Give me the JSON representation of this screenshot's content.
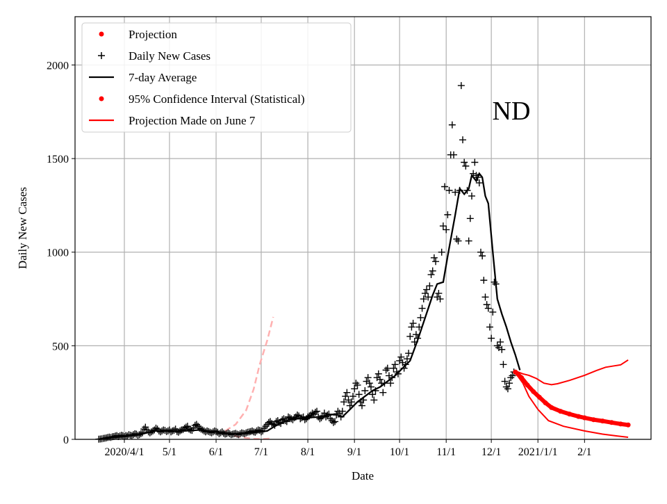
{
  "chart_data": {
    "type": "scatter",
    "title": "",
    "annotation": "ND",
    "xlabel": "Date",
    "ylabel": "Daily New Cases",
    "x_units": "days since 2020-04-01",
    "xlim": [
      -32.8,
      350.2
    ],
    "ylim": [
      0,
      2258
    ],
    "grid": true,
    "legend_position": "top-left",
    "x_ticks": [
      {
        "day": 0,
        "label": "2020/4/1"
      },
      {
        "day": 30,
        "label": "5/1"
      },
      {
        "day": 61,
        "label": "6/1"
      },
      {
        "day": 91,
        "label": "7/1"
      },
      {
        "day": 122,
        "label": "8/1"
      },
      {
        "day": 153,
        "label": "9/1"
      },
      {
        "day": 183,
        "label": "10/1"
      },
      {
        "day": 214,
        "label": "11/1"
      },
      {
        "day": 244,
        "label": "12/1"
      },
      {
        "day": 275,
        "label": "2021/1/1"
      },
      {
        "day": 306,
        "label": "2/1"
      }
    ],
    "y_ticks": [
      0,
      500,
      1000,
      1500,
      2000
    ],
    "legend": [
      {
        "label": "Projection",
        "marker": "dot",
        "color": "#ff0000"
      },
      {
        "label": "Daily New Cases",
        "marker": "plus",
        "color": "#000000"
      },
      {
        "label": "7-day Average",
        "marker": "line",
        "color": "#000000"
      },
      {
        "label": "95% Confidence Interval (Statistical)",
        "marker": "dot",
        "color": "#ff0000"
      },
      {
        "label": "Projection Made on June 7",
        "marker": "line",
        "color": "#ff0000"
      }
    ],
    "series": [
      {
        "name": "Daily New Cases",
        "color": "#000000",
        "start_day": -17,
        "values": [
          1,
          2,
          3,
          5,
          6,
          8,
          10,
          12,
          10,
          14,
          15,
          18,
          20,
          15,
          18,
          22,
          20,
          15,
          20,
          18,
          25,
          22,
          20,
          25,
          30,
          28,
          22,
          25,
          30,
          35,
          55,
          65,
          50,
          40,
          35,
          40,
          45,
          50,
          60,
          55,
          45,
          40,
          45,
          50,
          48,
          42,
          45,
          50,
          40,
          45,
          48,
          55,
          42,
          38,
          45,
          50,
          52,
          60,
          65,
          70,
          55,
          50,
          48,
          60,
          75,
          80,
          70,
          60,
          55,
          50,
          45,
          40,
          45,
          42,
          38,
          35,
          40,
          45,
          42,
          38,
          30,
          35,
          40,
          32,
          28,
          30,
          35,
          30,
          25,
          28,
          30,
          32,
          28,
          25,
          30,
          35,
          32,
          30,
          35,
          38,
          40,
          42,
          45,
          40,
          38,
          45,
          50,
          48,
          40,
          45,
          60,
          70,
          80,
          90,
          95,
          85,
          80,
          75,
          95,
          100,
          90,
          85,
          105,
          110,
          100,
          95,
          120,
          115,
          110,
          105,
          115,
          120,
          130,
          125,
          110,
          115,
          120,
          105,
          110,
          120,
          125,
          130,
          140,
          135,
          145,
          150,
          120,
          110,
          115,
          125,
          140,
          120,
          130,
          135,
          110,
          100,
          90,
          95,
          130,
          150,
          140,
          120,
          150,
          200,
          230,
          250,
          210,
          180,
          200,
          230,
          270,
          300,
          290,
          240,
          200,
          180,
          210,
          260,
          310,
          330,
          300,
          280,
          240,
          210,
          260,
          330,
          350,
          320,
          300,
          250,
          300,
          370,
          380,
          340,
          300,
          330,
          380,
          400,
          360,
          350,
          420,
          440,
          410,
          380,
          400,
          430,
          460,
          550,
          600,
          620,
          520,
          560,
          540,
          600,
          650,
          700,
          750,
          780,
          800,
          760,
          820,
          880,
          900,
          970,
          950,
          760,
          780,
          750,
          1000,
          1140,
          1350,
          1120,
          1200,
          1330,
          1520,
          1680,
          1520,
          1320,
          1070,
          1060,
          1330,
          1890,
          1600,
          1480,
          1460,
          1330,
          1060,
          1180,
          1300,
          1420,
          1480,
          1410,
          1400,
          1370,
          1000,
          980,
          850,
          760,
          720,
          700,
          600,
          540,
          680,
          840,
          830,
          500,
          490,
          520,
          480,
          400,
          310,
          280,
          270,
          300,
          330,
          340,
          360
        ]
      },
      {
        "name": "7-day Average",
        "color": "#000000",
        "points": [
          [
            -17,
            0
          ],
          [
            -8,
            10
          ],
          [
            0,
            15
          ],
          [
            10,
            25
          ],
          [
            20,
            45
          ],
          [
            30,
            45
          ],
          [
            40,
            45
          ],
          [
            50,
            50
          ],
          [
            60,
            40
          ],
          [
            70,
            30
          ],
          [
            80,
            30
          ],
          [
            90,
            40
          ],
          [
            95,
            45
          ],
          [
            100,
            70
          ],
          [
            105,
            90
          ],
          [
            110,
            105
          ],
          [
            120,
            115
          ],
          [
            130,
            120
          ],
          [
            140,
            135
          ],
          [
            145,
            120
          ],
          [
            150,
            160
          ],
          [
            155,
            200
          ],
          [
            165,
            260
          ],
          [
            170,
            280
          ],
          [
            180,
            340
          ],
          [
            185,
            380
          ],
          [
            190,
            420
          ],
          [
            195,
            530
          ],
          [
            200,
            650
          ],
          [
            205,
            770
          ],
          [
            208,
            830
          ],
          [
            212,
            840
          ],
          [
            215,
            980
          ],
          [
            220,
            1200
          ],
          [
            223,
            1340
          ],
          [
            226,
            1310
          ],
          [
            229,
            1340
          ],
          [
            231,
            1410
          ],
          [
            234,
            1380
          ],
          [
            236,
            1420
          ],
          [
            238,
            1400
          ],
          [
            240,
            1300
          ],
          [
            242,
            1260
          ],
          [
            245,
            1000
          ],
          [
            248,
            750
          ],
          [
            251,
            670
          ],
          [
            254,
            600
          ],
          [
            257,
            520
          ],
          [
            260,
            450
          ],
          [
            263,
            370
          ]
        ]
      },
      {
        "name": "Projection",
        "color": "#ff0000",
        "points": [
          [
            260,
            360
          ],
          [
            264,
            330
          ],
          [
            268,
            290
          ],
          [
            272,
            255
          ],
          [
            276,
            225
          ],
          [
            280,
            195
          ],
          [
            284,
            170
          ],
          [
            290,
            150
          ],
          [
            296,
            135
          ],
          [
            302,
            122
          ],
          [
            306,
            115
          ],
          [
            312,
            105
          ],
          [
            318,
            98
          ],
          [
            324,
            90
          ],
          [
            330,
            82
          ],
          [
            335,
            77
          ]
        ]
      },
      {
        "name": "95% Confidence Interval (Statistical) upper",
        "color": "#ff0000",
        "points": [
          [
            260,
            365
          ],
          [
            265,
            350
          ],
          [
            269,
            342
          ],
          [
            274,
            325
          ],
          [
            279,
            300
          ],
          [
            284,
            292
          ],
          [
            288,
            297
          ],
          [
            296,
            315
          ],
          [
            306,
            342
          ],
          [
            314,
            368
          ],
          [
            320,
            385
          ],
          [
            326,
            393
          ],
          [
            330,
            398
          ],
          [
            335,
            424
          ]
        ]
      },
      {
        "name": "95% Confidence Interval (Statistical) lower",
        "color": "#ff0000",
        "points": [
          [
            260,
            355
          ],
          [
            265,
            300
          ],
          [
            269,
            230
          ],
          [
            275,
            160
          ],
          [
            282,
            100
          ],
          [
            292,
            70
          ],
          [
            306,
            45
          ],
          [
            318,
            28
          ],
          [
            328,
            18
          ],
          [
            335,
            11
          ]
        ]
      },
      {
        "name": "Projection Made on June 7 (upper)",
        "color": "#ffb0b0",
        "points": [
          [
            67,
            45
          ],
          [
            74,
            80
          ],
          [
            81,
            156
          ],
          [
            86,
            268
          ],
          [
            90,
            400
          ],
          [
            95,
            528
          ],
          [
            99,
            654
          ]
        ]
      },
      {
        "name": "Projection Made on June 7 (lower)",
        "color": "#ffb0b0",
        "points": [
          [
            67,
            37
          ],
          [
            75,
            15
          ],
          [
            85,
            3
          ],
          [
            92,
            2
          ],
          [
            98,
            5
          ]
        ]
      }
    ]
  }
}
